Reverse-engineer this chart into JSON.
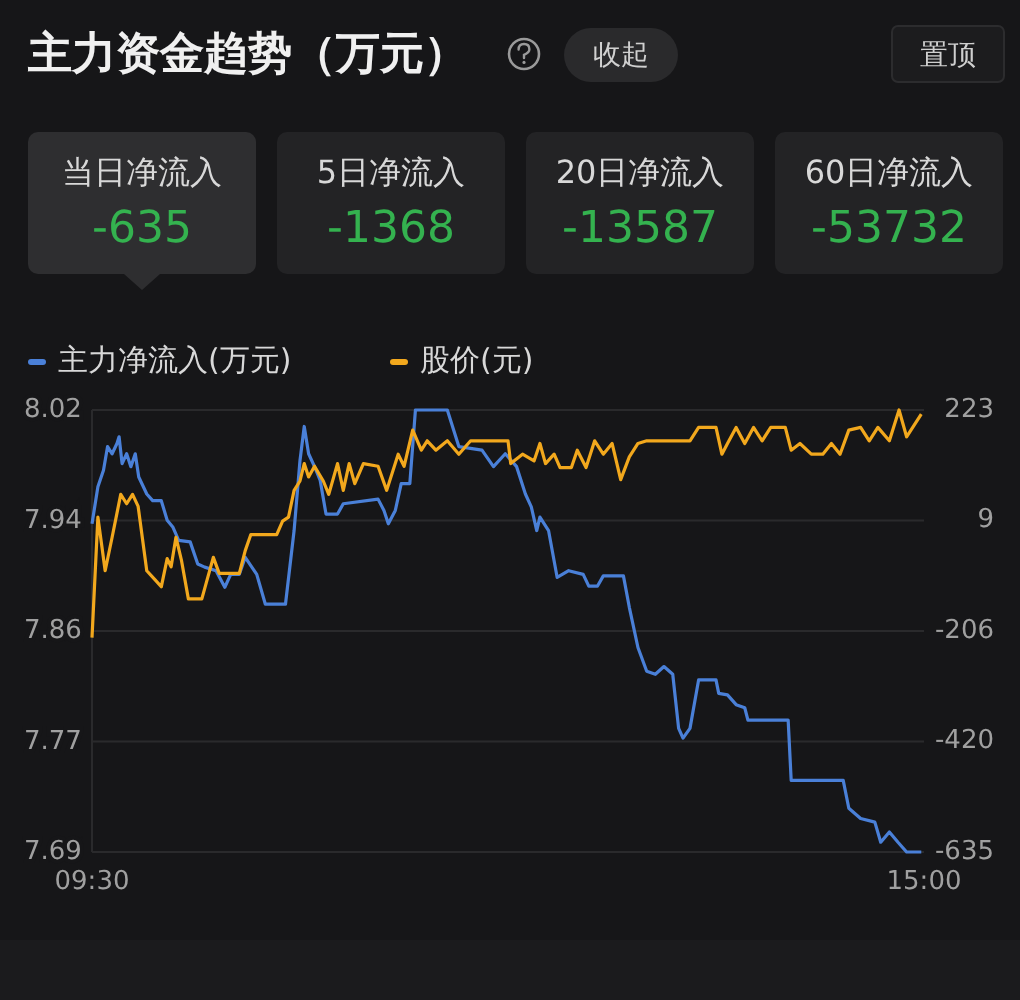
{
  "chart_data": {
    "type": "line",
    "title": "主力资金趋势（万元）",
    "annotations": [
      "收起",
      "置顶",
      "当日净流入",
      "-635",
      "5日净流入",
      "-1368",
      "20日净流入",
      "-13587",
      "60日净流入",
      "-53732"
    ],
    "xlim": [
      9.5,
      15
    ],
    "xticks": [
      {
        "value": 9.5,
        "label": "09:30"
      },
      {
        "value": 15,
        "label": "15:00"
      }
    ],
    "ylim": [
      7.69,
      8.02
    ],
    "yticks": [
      8.02,
      {
        "value": 7.9375,
        "label": "7.94"
      },
      {
        "value": 7.855,
        "label": "7.86"
      },
      {
        "value": 7.7725,
        "label": "7.77"
      },
      7.69
    ],
    "y2lim": [
      -635,
      223
    ],
    "y2ticks": [
      223,
      9,
      -206,
      -420,
      -635
    ],
    "grid": "y",
    "legend": "top left",
    "marker": "none",
    "line_style": "solid",
    "series": [
      {
        "name": "主力净流入(万元)",
        "color": "#4a80d8",
        "axis": "y2",
        "x": [
          9.5,
          9.539,
          9.576,
          9.603,
          9.633,
          9.665,
          9.679,
          9.699,
          9.729,
          9.757,
          9.786,
          9.809,
          9.862,
          9.901,
          9.958,
          9.997,
          10.034,
          10.073,
          10.149,
          10.199,
          10.245,
          10.32,
          10.378,
          10.417,
          10.474,
          10.513,
          10.589,
          10.646,
          10.779,
          10.836,
          10.875,
          10.903,
          10.932,
          10.971,
          11.008,
          11.047,
          11.123,
          11.161,
          11.391,
          11.43,
          11.459,
          11.505,
          11.544,
          11.601,
          11.638,
          11.849,
          11.925,
          12.078,
          12.154,
          12.232,
          12.307,
          12.365,
          12.404,
          12.44,
          12.461,
          12.518,
          12.575,
          12.651,
          12.747,
          12.784,
          12.841,
          12.88,
          13.013,
          13.052,
          13.109,
          13.167,
          13.224,
          13.281,
          13.339,
          13.378,
          13.407,
          13.453,
          13.51,
          13.625,
          13.643,
          13.701,
          13.758,
          13.815,
          13.836,
          14.102,
          14.122,
          14.466,
          14.503,
          14.581,
          14.675,
          14.714,
          14.771,
          14.828,
          14.885,
          14.982
        ],
        "values": [
          2,
          74,
          106,
          152,
          138,
          158,
          171,
          119,
          138,
          113,
          138,
          93,
          60,
          47,
          47,
          9,
          -4,
          -30,
          -33,
          -76,
          -82,
          -89,
          -121,
          -96,
          -96,
          -63,
          -96,
          -154,
          -154,
          -11,
          125,
          191,
          138,
          113,
          87,
          21,
          21,
          41,
          50,
          28,
          2,
          28,
          80,
          80,
          223,
          223,
          152,
          145,
          113,
          138,
          113,
          60,
          35,
          -11,
          15,
          -11,
          -102,
          -89,
          -96,
          -119,
          -119,
          -99,
          -99,
          -160,
          -238,
          -284,
          -290,
          -275,
          -290,
          -395,
          -414,
          -395,
          -301,
          -301,
          -327,
          -330,
          -349,
          -355,
          -379,
          -379,
          -496,
          -496,
          -550,
          -570,
          -577,
          -616,
          -596,
          -616,
          -635,
          -635
        ]
      },
      {
        "name": "股价(元)",
        "color": "#f2a81d",
        "axis": "y",
        "x": [
          9.5,
          9.539,
          9.587,
          9.633,
          9.69,
          9.729,
          9.768,
          9.805,
          9.862,
          9.919,
          9.958,
          9.997,
          10.023,
          10.055,
          10.091,
          10.137,
          10.226,
          10.302,
          10.341,
          10.474,
          10.513,
          10.55,
          10.721,
          10.76,
          10.799,
          10.836,
          10.875,
          10.903,
          10.932,
          10.971,
          11.029,
          11.065,
          11.123,
          11.161,
          11.2,
          11.237,
          11.294,
          11.391,
          11.448,
          11.524,
          11.563,
          11.62,
          11.677,
          11.716,
          11.773,
          11.849,
          11.925,
          12.003,
          12.25,
          12.268,
          12.346,
          12.422,
          12.461,
          12.498,
          12.555,
          12.594,
          12.669,
          12.708,
          12.766,
          12.823,
          12.88,
          12.938,
          12.995,
          13.052,
          13.109,
          13.167,
          13.453,
          13.51,
          13.625,
          13.664,
          13.701,
          13.758,
          13.815,
          13.873,
          13.93,
          13.987,
          14.083,
          14.122,
          14.18,
          14.255,
          14.331,
          14.388,
          14.445,
          14.503,
          14.581,
          14.638,
          14.695,
          14.771,
          14.835,
          14.885,
          14.982
        ],
        "values": [
          7.85,
          7.94,
          7.9,
          7.925,
          7.957,
          7.95,
          7.957,
          7.948,
          7.9,
          7.893,
          7.888,
          7.909,
          7.903,
          7.925,
          7.908,
          7.879,
          7.879,
          7.91,
          7.898,
          7.898,
          7.915,
          7.927,
          7.927,
          7.937,
          7.94,
          7.96,
          7.967,
          7.98,
          7.97,
          7.978,
          7.967,
          7.957,
          7.98,
          7.96,
          7.98,
          7.965,
          7.98,
          7.978,
          7.96,
          7.987,
          7.978,
          8.005,
          7.99,
          7.997,
          7.99,
          7.997,
          7.987,
          7.997,
          7.997,
          7.98,
          7.987,
          7.982,
          7.995,
          7.98,
          7.987,
          7.977,
          7.977,
          7.99,
          7.977,
          7.997,
          7.987,
          7.995,
          7.968,
          7.985,
          7.995,
          7.997,
          7.997,
          8.007,
          8.007,
          7.987,
          7.995,
          8.007,
          7.995,
          8.007,
          7.997,
          8.007,
          8.007,
          7.99,
          7.995,
          7.987,
          7.987,
          7.995,
          7.987,
          8.005,
          8.007,
          7.997,
          8.007,
          7.997,
          8.02,
          8.0,
          8.017
        ]
      }
    ]
  }
}
